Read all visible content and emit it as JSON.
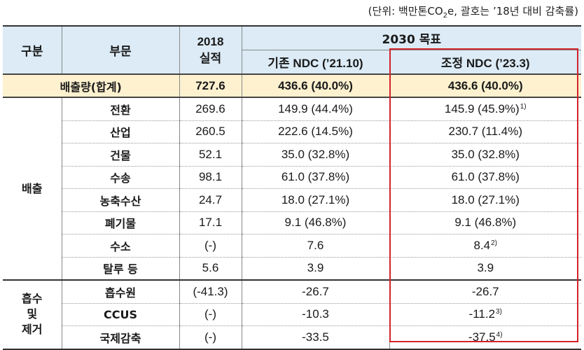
{
  "unit_note": {
    "prefix": "(단위: 백만톤CO",
    "sub": "2",
    "suffix": "e, 괄호는 ’18년 대비 감축률)"
  },
  "header": {
    "category": "구분",
    "sector": "부문",
    "actual_2018": "2018\n실적",
    "target_2030": "2030 목표",
    "existing_ndc": "기존 NDC (’21.10)",
    "adjusted_ndc": "조정 NDC (’23.3)"
  },
  "total": {
    "label": "배출량(합계)",
    "actual": "727.6",
    "existing": "436.6 (40.0%)",
    "adjusted": "436.6 (40.0%)"
  },
  "groups": [
    {
      "label": "배출",
      "rows": [
        {
          "sector": "전환",
          "actual": "269.6",
          "existing": "149.9 (44.4%)",
          "adjusted": "145.9 (45.9%)",
          "note": "1)"
        },
        {
          "sector": "산업",
          "actual": "260.5",
          "existing": "222.6 (14.5%)",
          "adjusted": "230.7 (11.4%)",
          "note": ""
        },
        {
          "sector": "건물",
          "actual": "52.1",
          "existing": "35.0 (32.8%)",
          "adjusted": "35.0 (32.8%)",
          "note": ""
        },
        {
          "sector": "수송",
          "actual": "98.1",
          "existing": "61.0 (37.8%)",
          "adjusted": "61.0 (37.8%)",
          "note": ""
        },
        {
          "sector": "농축수산",
          "actual": "24.7",
          "existing": "18.0 (27.1%)",
          "adjusted": "18.0 (27.1%)",
          "note": ""
        },
        {
          "sector": "폐기물",
          "actual": "17.1",
          "existing": "9.1 (46.8%)",
          "adjusted": "9.1 (46.8%)",
          "note": ""
        },
        {
          "sector": "수소",
          "actual": "(-)",
          "existing": "7.6",
          "adjusted": "8.4",
          "note": "2)"
        },
        {
          "sector": "탈루 등",
          "actual": "5.6",
          "existing": "3.9",
          "adjusted": "3.9",
          "note": ""
        }
      ]
    },
    {
      "label": "흡수\n및\n제거",
      "rows": [
        {
          "sector": "흡수원",
          "actual": "(-41.3)",
          "existing": "-26.7",
          "adjusted": "-26.7",
          "note": ""
        },
        {
          "sector": "CCUS",
          "actual": "(-)",
          "existing": "-10.3",
          "adjusted": "-11.2",
          "note": "3)"
        },
        {
          "sector": "국제감축",
          "actual": "(-)",
          "existing": "-33.5",
          "adjusted": "-37.5",
          "note": "4)"
        }
      ]
    }
  ],
  "colors": {
    "header_bg": "#dcebf6",
    "total_bg": "#fdf1cf",
    "highlight_border": "#d2232a"
  }
}
